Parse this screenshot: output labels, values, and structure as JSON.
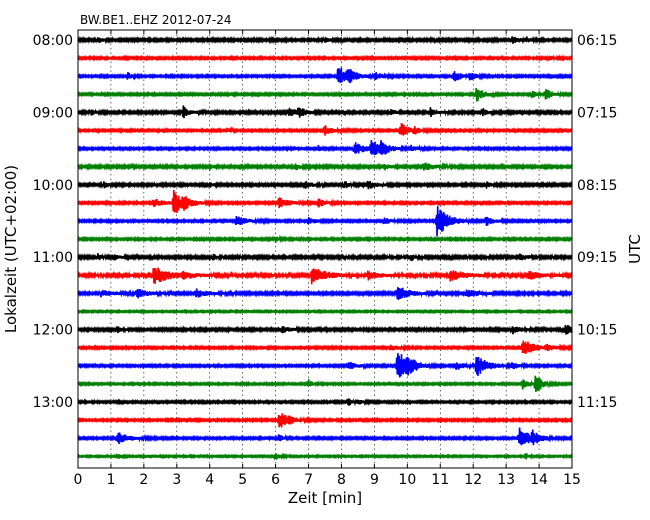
{
  "chart_data": {
    "type": "line",
    "title": "BW.BE1..EHZ 2012-07-24",
    "xlabel": "Zeit  [min]",
    "ylabel_left": "Lokalzeit (UTC+02:00)",
    "ylabel_right": "UTC",
    "xlim": [
      0,
      15
    ],
    "x_ticks": [
      "0",
      "1",
      "2",
      "3",
      "4",
      "5",
      "6",
      "7",
      "8",
      "9",
      "10",
      "11",
      "12",
      "13",
      "14",
      "15"
    ],
    "left_hour_labels": [
      "08:00",
      "09:00",
      "10:00",
      "11:00",
      "12:00",
      "13:00"
    ],
    "right_hour_labels": [
      "06:15",
      "07:15",
      "08:15",
      "09:15",
      "10:15",
      "11:15"
    ],
    "grid": "vertical dotted at each minute",
    "line_minutes": 15,
    "colors": [
      "#000000",
      "#ff0000",
      "#0000ff",
      "#008000"
    ],
    "lines": [
      {
        "color_index": 0,
        "noise": 1.2,
        "events": [
          [
            0.6,
            3,
            0.1
          ],
          [
            7.5,
            3,
            0.1
          ],
          [
            13.2,
            4,
            0.15
          ],
          [
            13.6,
            3,
            0.1
          ]
        ]
      },
      {
        "color_index": 1,
        "noise": 1.0,
        "events": [
          [
            14.3,
            2,
            0.15
          ]
        ]
      },
      {
        "color_index": 2,
        "noise": 1.0,
        "events": [
          [
            1.5,
            4,
            0.1
          ],
          [
            7.9,
            11,
            0.25
          ],
          [
            8.2,
            6,
            0.2
          ],
          [
            9.0,
            4,
            0.2
          ],
          [
            11.4,
            6,
            0.2
          ],
          [
            11.9,
            4,
            0.15
          ]
        ]
      },
      {
        "color_index": 3,
        "noise": 1.0,
        "events": [
          [
            12.1,
            7,
            0.2
          ],
          [
            13.8,
            3,
            0.15
          ],
          [
            14.2,
            6,
            0.15
          ]
        ]
      },
      {
        "color_index": 0,
        "noise": 1.2,
        "events": [
          [
            0.4,
            3,
            0.1
          ],
          [
            3.2,
            6,
            0.15
          ],
          [
            6.4,
            5,
            0.2
          ],
          [
            6.7,
            4,
            0.2
          ],
          [
            9.5,
            4,
            0.1
          ],
          [
            10.7,
            5,
            0.15
          ],
          [
            12.3,
            4,
            0.1
          ]
        ]
      },
      {
        "color_index": 1,
        "noise": 1.0,
        "events": [
          [
            4.5,
            2,
            0.1
          ],
          [
            7.5,
            5,
            0.2
          ],
          [
            9.8,
            8,
            0.2
          ],
          [
            10.2,
            3,
            0.15
          ]
        ]
      },
      {
        "color_index": 2,
        "noise": 1.0,
        "events": [
          [
            7.3,
            3,
            0.1
          ],
          [
            8.4,
            6,
            0.3
          ],
          [
            8.9,
            9,
            0.25
          ],
          [
            9.2,
            6,
            0.2
          ],
          [
            10.1,
            3,
            0.2
          ]
        ]
      },
      {
        "color_index": 3,
        "noise": 1.2,
        "events": [
          [
            6.6,
            4,
            0.1
          ],
          [
            9.3,
            3,
            0.15
          ],
          [
            10.5,
            4,
            0.25
          ]
        ]
      },
      {
        "color_index": 0,
        "noise": 1.2,
        "events": [
          [
            0.8,
            4,
            0.1
          ],
          [
            4,
            3,
            0.1
          ],
          [
            6.9,
            4,
            0.15
          ],
          [
            8.1,
            4,
            0.1
          ],
          [
            8.8,
            4,
            0.2
          ],
          [
            12.4,
            3,
            0.1
          ]
        ]
      },
      {
        "color_index": 1,
        "noise": 1.0,
        "events": [
          [
            2.3,
            4,
            0.3
          ],
          [
            2.9,
            13,
            0.25
          ],
          [
            3.2,
            5,
            0.2
          ],
          [
            6.1,
            5,
            0.3
          ],
          [
            7.3,
            4,
            0.2
          ]
        ]
      },
      {
        "color_index": 2,
        "noise": 1.0,
        "events": [
          [
            4.8,
            5,
            0.3
          ],
          [
            7.0,
            3,
            0.2
          ],
          [
            9.3,
            3,
            0.2
          ],
          [
            10.9,
            17,
            0.3
          ],
          [
            12.4,
            4,
            0.2
          ]
        ]
      },
      {
        "color_index": 3,
        "noise": 1.0,
        "events": [
          [
            6.0,
            3,
            0.1
          ]
        ]
      },
      {
        "color_index": 0,
        "noise": 1.3,
        "events": [
          [
            0.6,
            3,
            0.1
          ],
          [
            1.1,
            3,
            0.1
          ],
          [
            4.1,
            3,
            0.1
          ],
          [
            10.1,
            4,
            0.1
          ],
          [
            13.4,
            3,
            0.2
          ]
        ]
      },
      {
        "color_index": 1,
        "noise": 1.4,
        "events": [
          [
            2.3,
            9,
            0.4
          ],
          [
            3.2,
            4,
            0.2
          ],
          [
            7.1,
            8,
            0.4
          ],
          [
            8.8,
            4,
            0.3
          ],
          [
            11.3,
            5,
            0.4
          ],
          [
            13.7,
            4,
            0.3
          ]
        ]
      },
      {
        "color_index": 2,
        "noise": 1.2,
        "events": [
          [
            0.7,
            3,
            0.3
          ],
          [
            1.8,
            4,
            0.3
          ],
          [
            3.6,
            4,
            0.3
          ],
          [
            9.7,
            8,
            0.3
          ],
          [
            11.8,
            4,
            0.3
          ]
        ]
      },
      {
        "color_index": 3,
        "noise": 0.8,
        "events": []
      },
      {
        "color_index": 0,
        "noise": 1.2,
        "events": [
          [
            1.2,
            3,
            0.1
          ],
          [
            6.2,
            3,
            0.2
          ],
          [
            13.2,
            4,
            0.2
          ],
          [
            14.8,
            4,
            0.4
          ]
        ]
      },
      {
        "color_index": 1,
        "noise": 1.0,
        "events": [
          [
            9.5,
            3,
            0.2
          ],
          [
            13.5,
            9,
            0.3
          ],
          [
            14.2,
            3,
            0.2
          ]
        ]
      },
      {
        "color_index": 2,
        "noise": 1.0,
        "events": [
          [
            8.2,
            5,
            0.2
          ],
          [
            9.7,
            16,
            0.3
          ],
          [
            10.0,
            7,
            0.2
          ],
          [
            11.5,
            4,
            0.2
          ],
          [
            12.1,
            11,
            0.3
          ],
          [
            13.2,
            3,
            0.15
          ]
        ]
      },
      {
        "color_index": 3,
        "noise": 0.9,
        "events": [
          [
            7.0,
            4,
            0.1
          ],
          [
            13.5,
            5,
            0.15
          ],
          [
            13.9,
            12,
            0.15
          ]
        ]
      },
      {
        "color_index": 0,
        "noise": 1.0,
        "events": [
          [
            8.2,
            4,
            0.1
          ],
          [
            8.5,
            3,
            0.1
          ]
        ]
      },
      {
        "color_index": 1,
        "noise": 1.0,
        "events": [
          [
            6.1,
            9,
            0.25
          ],
          [
            6.4,
            3,
            0.15
          ]
        ]
      },
      {
        "color_index": 2,
        "noise": 1.0,
        "events": [
          [
            1.2,
            6,
            0.3
          ],
          [
            6.1,
            4,
            0.1
          ],
          [
            13.4,
            11,
            0.3
          ],
          [
            13.8,
            5,
            0.2
          ]
        ]
      },
      {
        "color_index": 3,
        "noise": 0.8,
        "events": [
          [
            1.2,
            3,
            0.1
          ],
          [
            6.0,
            4,
            0.1
          ],
          [
            13.6,
            3,
            0.1
          ]
        ]
      }
    ]
  }
}
